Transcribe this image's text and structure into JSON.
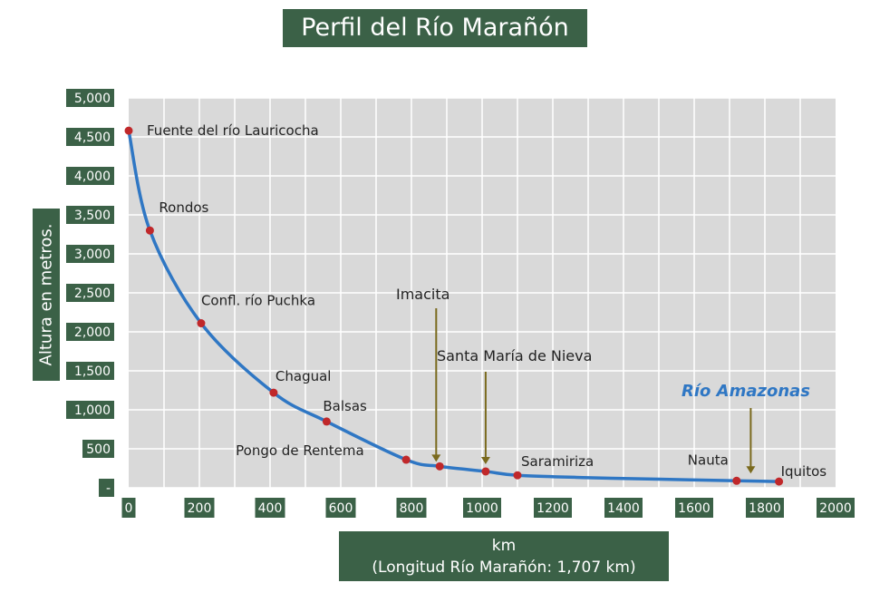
{
  "chart_data": {
    "type": "line",
    "title": "Perfil del Río Marañón",
    "ylabel": "Altura en metros.",
    "xlabel": "km",
    "xlabel_note": "(Longitud Río Marañón: 1,707 km)",
    "xlim": [
      0,
      2000
    ],
    "ylim": [
      0,
      5000
    ],
    "x_ticks": [
      "0",
      "200",
      "400",
      "600",
      "800",
      "1000",
      "1200",
      "1400",
      "1600",
      "1800",
      "2000"
    ],
    "y_ticks": [
      "-",
      "500",
      "1,000",
      "1,500",
      "2,000",
      "2,500",
      "3,000",
      "3,500",
      "4,000",
      "4,500",
      "5,000"
    ],
    "grid": true,
    "line_color": "#2f77c4",
    "point_color": "#c0282a",
    "series": [
      {
        "x": [
          0,
          60,
          205,
          410,
          560,
          785,
          880,
          1010,
          1100,
          1300,
          1500,
          1720,
          1840
        ],
        "y": [
          4580,
          3300,
          2110,
          1220,
          850,
          360,
          275,
          210,
          160,
          130,
          110,
          90,
          80
        ]
      }
    ],
    "points": [
      {
        "label": "Fuente del río Lauricocha",
        "x": 0,
        "y": 4580
      },
      {
        "label": "Rondos",
        "x": 60,
        "y": 3300
      },
      {
        "label": "Confl. río Puchka",
        "x": 205,
        "y": 2110
      },
      {
        "label": "Chagual",
        "x": 410,
        "y": 1220
      },
      {
        "label": "Balsas",
        "x": 560,
        "y": 850
      },
      {
        "label": "Pongo de Rentema",
        "x": 785,
        "y": 360
      },
      {
        "label": "",
        "x": 880,
        "y": 275
      },
      {
        "label": "",
        "x": 1010,
        "y": 210
      },
      {
        "label": "Saramiriza",
        "x": 1100,
        "y": 160
      },
      {
        "label": "Nauta",
        "x": 1720,
        "y": 90
      },
      {
        "label": "Iquitos",
        "x": 1840,
        "y": 80
      }
    ],
    "annotations": [
      {
        "label": "Imacita",
        "x": 870,
        "y": 240,
        "color": "#7a6a1e"
      },
      {
        "label": "Santa María de Nieva",
        "x": 1010,
        "y": 210,
        "color": "#7a6a1e"
      },
      {
        "label": "Río Amazonas",
        "x": 1760,
        "y": 90,
        "color": "#7a6a1e",
        "text_color": "#2f77c4"
      }
    ]
  }
}
